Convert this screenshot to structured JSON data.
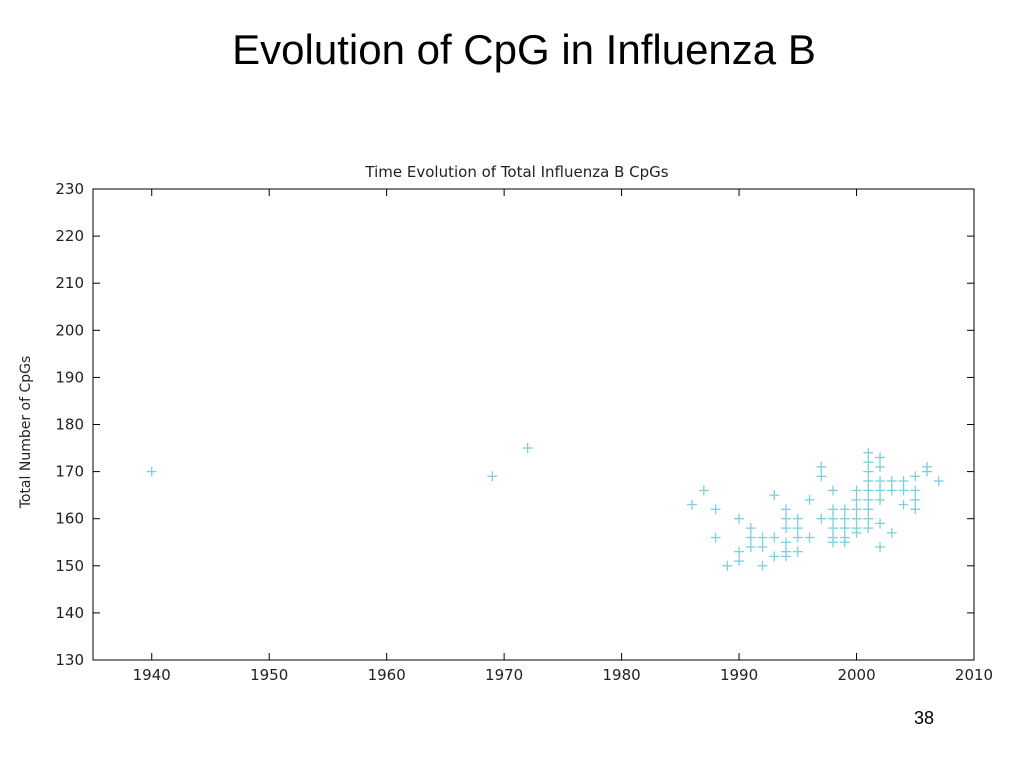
{
  "slide": {
    "title": "Evolution of CpG in Influenza B",
    "page_number": "38"
  },
  "colors": {
    "marker": "#7ecfdc",
    "axis": "#000000",
    "text": "#222222"
  },
  "chart_data": {
    "type": "scatter",
    "title": "Time Evolution of Total Influenza B CpGs",
    "xlabel": "",
    "ylabel": "Total Number of CpGs",
    "xlim": [
      1935,
      2010
    ],
    "ylim": [
      130,
      230
    ],
    "xticks": [
      1940,
      1950,
      1960,
      1970,
      1980,
      1990,
      2000,
      2010
    ],
    "yticks": [
      130,
      140,
      150,
      160,
      170,
      180,
      190,
      200,
      210,
      220,
      230
    ],
    "grid": false,
    "marker": "plus",
    "series": [
      {
        "points": [
          [
            1940,
            170
          ],
          [
            1969,
            169
          ],
          [
            1972,
            175
          ],
          [
            1986,
            163
          ],
          [
            1987,
            166
          ],
          [
            1988,
            162
          ],
          [
            1988,
            156
          ],
          [
            1989,
            150
          ],
          [
            1990,
            160
          ],
          [
            1990,
            153
          ],
          [
            1990,
            151
          ],
          [
            1991,
            158
          ],
          [
            1991,
            156
          ],
          [
            1991,
            154
          ],
          [
            1992,
            156
          ],
          [
            1992,
            154
          ],
          [
            1992,
            150
          ],
          [
            1993,
            165
          ],
          [
            1993,
            156
          ],
          [
            1993,
            152
          ],
          [
            1994,
            162
          ],
          [
            1994,
            160
          ],
          [
            1994,
            158
          ],
          [
            1994,
            155
          ],
          [
            1994,
            153
          ],
          [
            1994,
            152
          ],
          [
            1995,
            160
          ],
          [
            1995,
            158
          ],
          [
            1995,
            156
          ],
          [
            1995,
            153
          ],
          [
            1996,
            164
          ],
          [
            1996,
            156
          ],
          [
            1997,
            171
          ],
          [
            1997,
            169
          ],
          [
            1997,
            160
          ],
          [
            1998,
            166
          ],
          [
            1998,
            162
          ],
          [
            1998,
            160
          ],
          [
            1998,
            158
          ],
          [
            1998,
            156
          ],
          [
            1998,
            155
          ],
          [
            1999,
            162
          ],
          [
            1999,
            160
          ],
          [
            1999,
            158
          ],
          [
            1999,
            156
          ],
          [
            1999,
            155
          ],
          [
            2000,
            166
          ],
          [
            2000,
            164
          ],
          [
            2000,
            162
          ],
          [
            2000,
            160
          ],
          [
            2000,
            158
          ],
          [
            2000,
            157
          ],
          [
            2001,
            174
          ],
          [
            2001,
            172
          ],
          [
            2001,
            170
          ],
          [
            2001,
            168
          ],
          [
            2001,
            166
          ],
          [
            2001,
            164
          ],
          [
            2001,
            162
          ],
          [
            2001,
            160
          ],
          [
            2001,
            158
          ],
          [
            2002,
            173
          ],
          [
            2002,
            171
          ],
          [
            2002,
            168
          ],
          [
            2002,
            166
          ],
          [
            2002,
            164
          ],
          [
            2002,
            159
          ],
          [
            2002,
            154
          ],
          [
            2003,
            168
          ],
          [
            2003,
            166
          ],
          [
            2003,
            157
          ],
          [
            2004,
            168
          ],
          [
            2004,
            166
          ],
          [
            2004,
            163
          ],
          [
            2005,
            169
          ],
          [
            2005,
            166
          ],
          [
            2005,
            164
          ],
          [
            2005,
            162
          ],
          [
            2006,
            171
          ],
          [
            2006,
            170
          ],
          [
            2007,
            168
          ]
        ]
      }
    ]
  }
}
